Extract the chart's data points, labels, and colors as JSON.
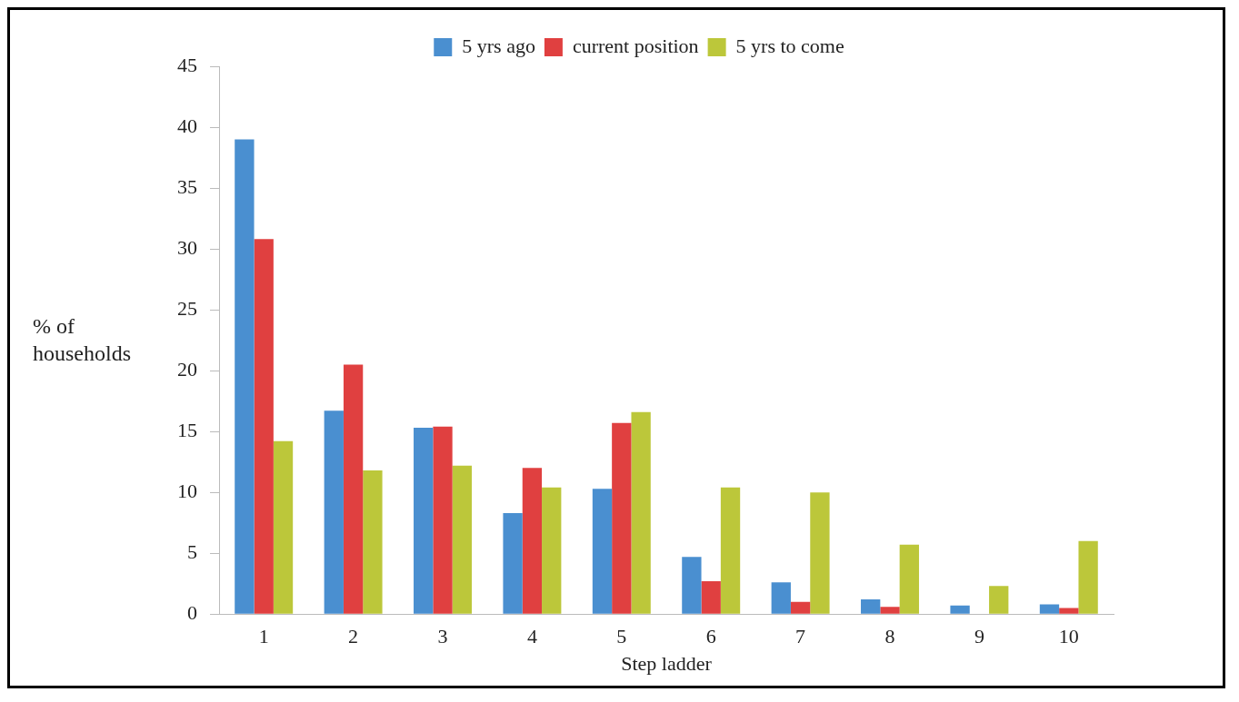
{
  "chart_data": {
    "type": "bar",
    "xlabel": "Step ladder",
    "ylabel": "% of households",
    "categories": [
      "1",
      "2",
      "3",
      "4",
      "5",
      "6",
      "7",
      "8",
      "9",
      "10"
    ],
    "series": [
      {
        "name": "5 yrs ago",
        "color": "#4a8fd0",
        "values": [
          39,
          16.7,
          15.3,
          8.3,
          10.3,
          4.7,
          2.6,
          1.2,
          0.7,
          0.8
        ]
      },
      {
        "name": "current position",
        "color": "#e04040",
        "values": [
          30.8,
          20.5,
          15.4,
          12,
          15.7,
          2.7,
          1,
          0.6,
          0,
          0.5
        ]
      },
      {
        "name": "5 yrs to come",
        "color": "#bcc73a",
        "values": [
          14.2,
          11.8,
          12.2,
          10.4,
          16.6,
          10.4,
          10,
          5.7,
          2.3,
          6
        ]
      }
    ],
    "ylim": [
      0,
      45
    ],
    "yticks": [
      0,
      5,
      10,
      15,
      20,
      25,
      30,
      35,
      40,
      45
    ],
    "grid": false,
    "legend": "top"
  }
}
